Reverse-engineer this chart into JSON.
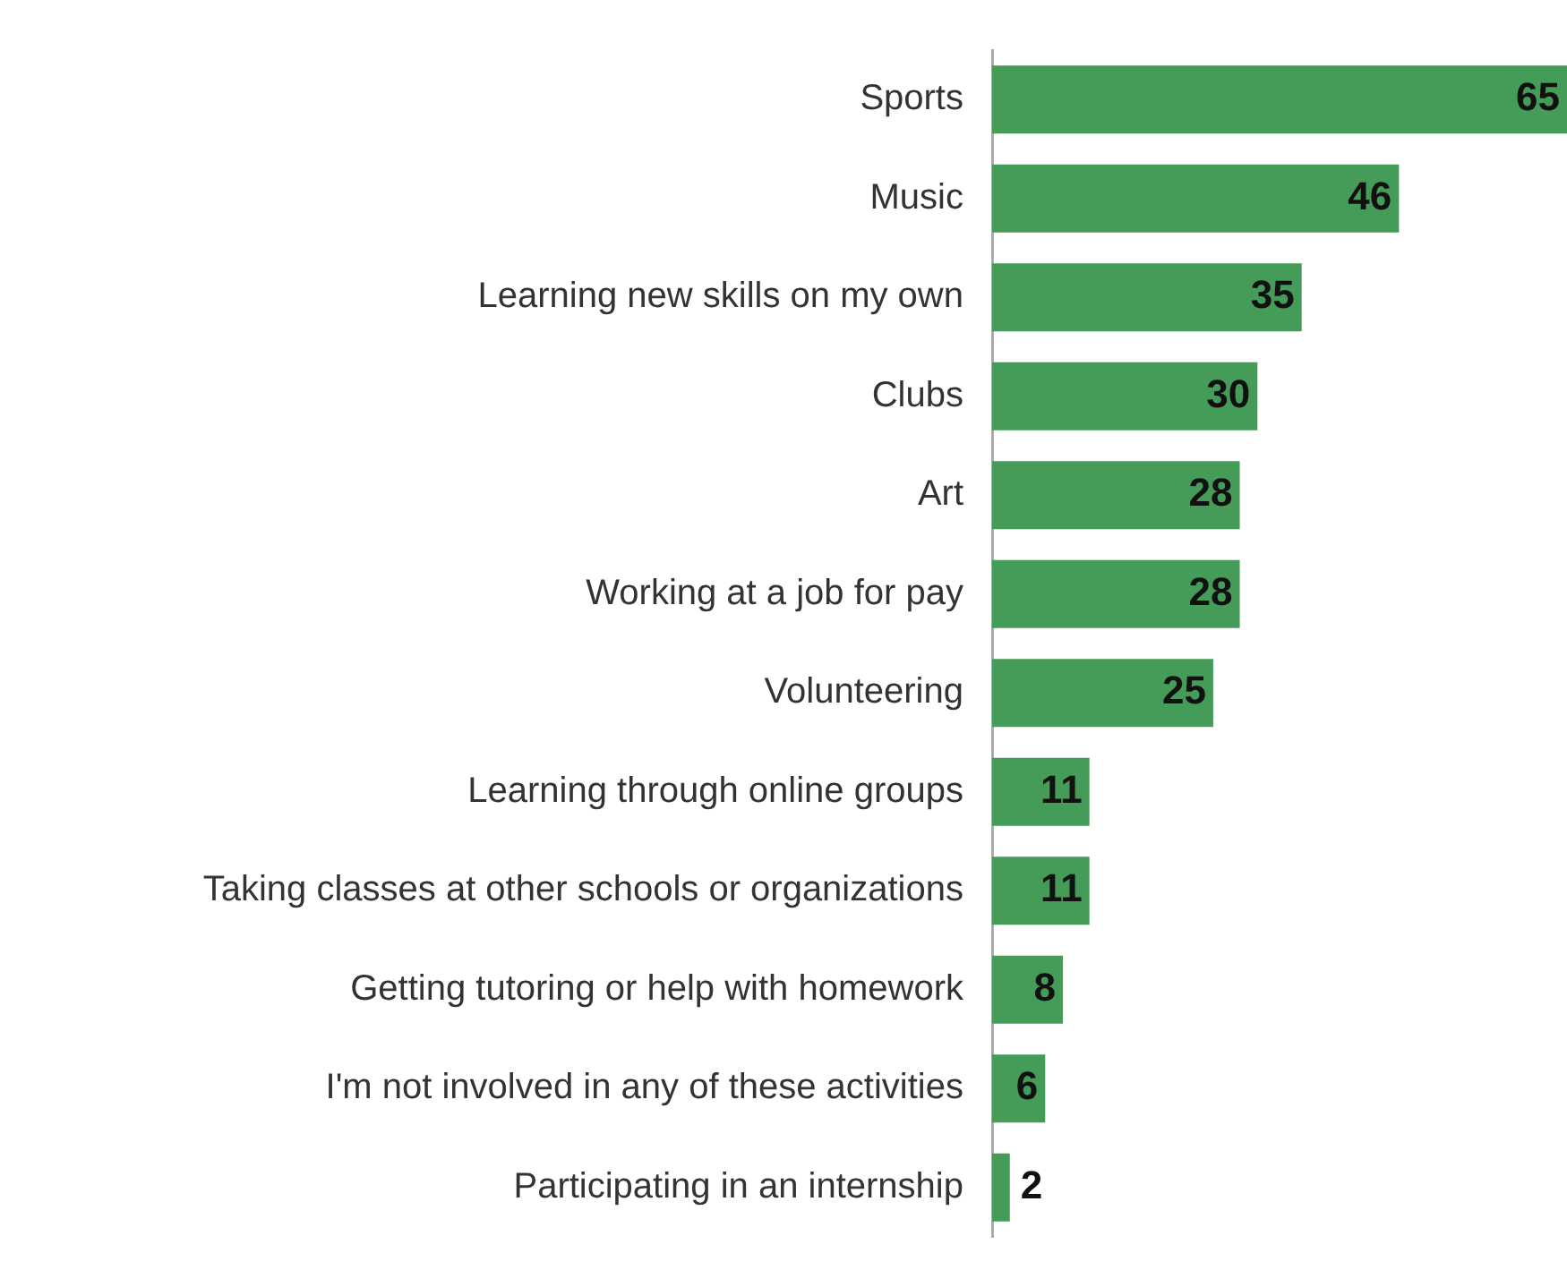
{
  "chart_data": {
    "type": "bar",
    "orientation": "horizontal",
    "categories": [
      "Sports",
      "Music",
      "Learning new skills on my own",
      "Clubs",
      "Art",
      "Working at a job for pay",
      "Volunteering",
      "Learning through online groups",
      "Taking classes at other schools or organizations",
      "Getting tutoring or help with homework",
      "I'm not involved in any of these activities",
      "Participating in an internship"
    ],
    "values": [
      65,
      46,
      35,
      30,
      28,
      28,
      25,
      11,
      11,
      8,
      6,
      2
    ],
    "color": "#459b58",
    "data_labels": true,
    "grid": false,
    "legend": false
  }
}
